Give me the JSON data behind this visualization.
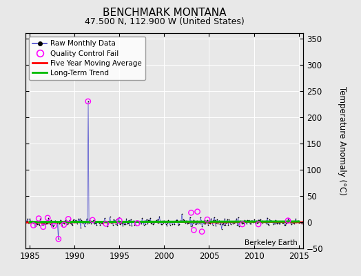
{
  "title": "BENCHMARK MONTANA",
  "subtitle": "47.500 N, 112.900 W (United States)",
  "ylabel": "Temperature Anomaly (°C)",
  "watermark": "Berkeley Earth",
  "xlim": [
    1984.5,
    2015.5
  ],
  "ylim": [
    -50,
    360
  ],
  "yticks": [
    -50,
    0,
    50,
    100,
    150,
    200,
    250,
    300,
    350
  ],
  "xticks": [
    1985,
    1990,
    1995,
    2000,
    2005,
    2010,
    2015
  ],
  "fig_bg_color": "#e8e8e8",
  "plot_bg_color": "#e8e8e8",
  "raw_color": "#000000",
  "raw_line_color": "#aaaaff",
  "qc_color": "#ff00ff",
  "moving_avg_color": "#ff0000",
  "trend_color": "#00bb00",
  "spike_year": 1991.5,
  "spike_value": 230,
  "dip_year": 1988.2,
  "dip_value": -32,
  "legend_labels": [
    "Raw Monthly Data",
    "Quality Control Fail",
    "Five Year Moving Average",
    "Long-Term Trend"
  ]
}
